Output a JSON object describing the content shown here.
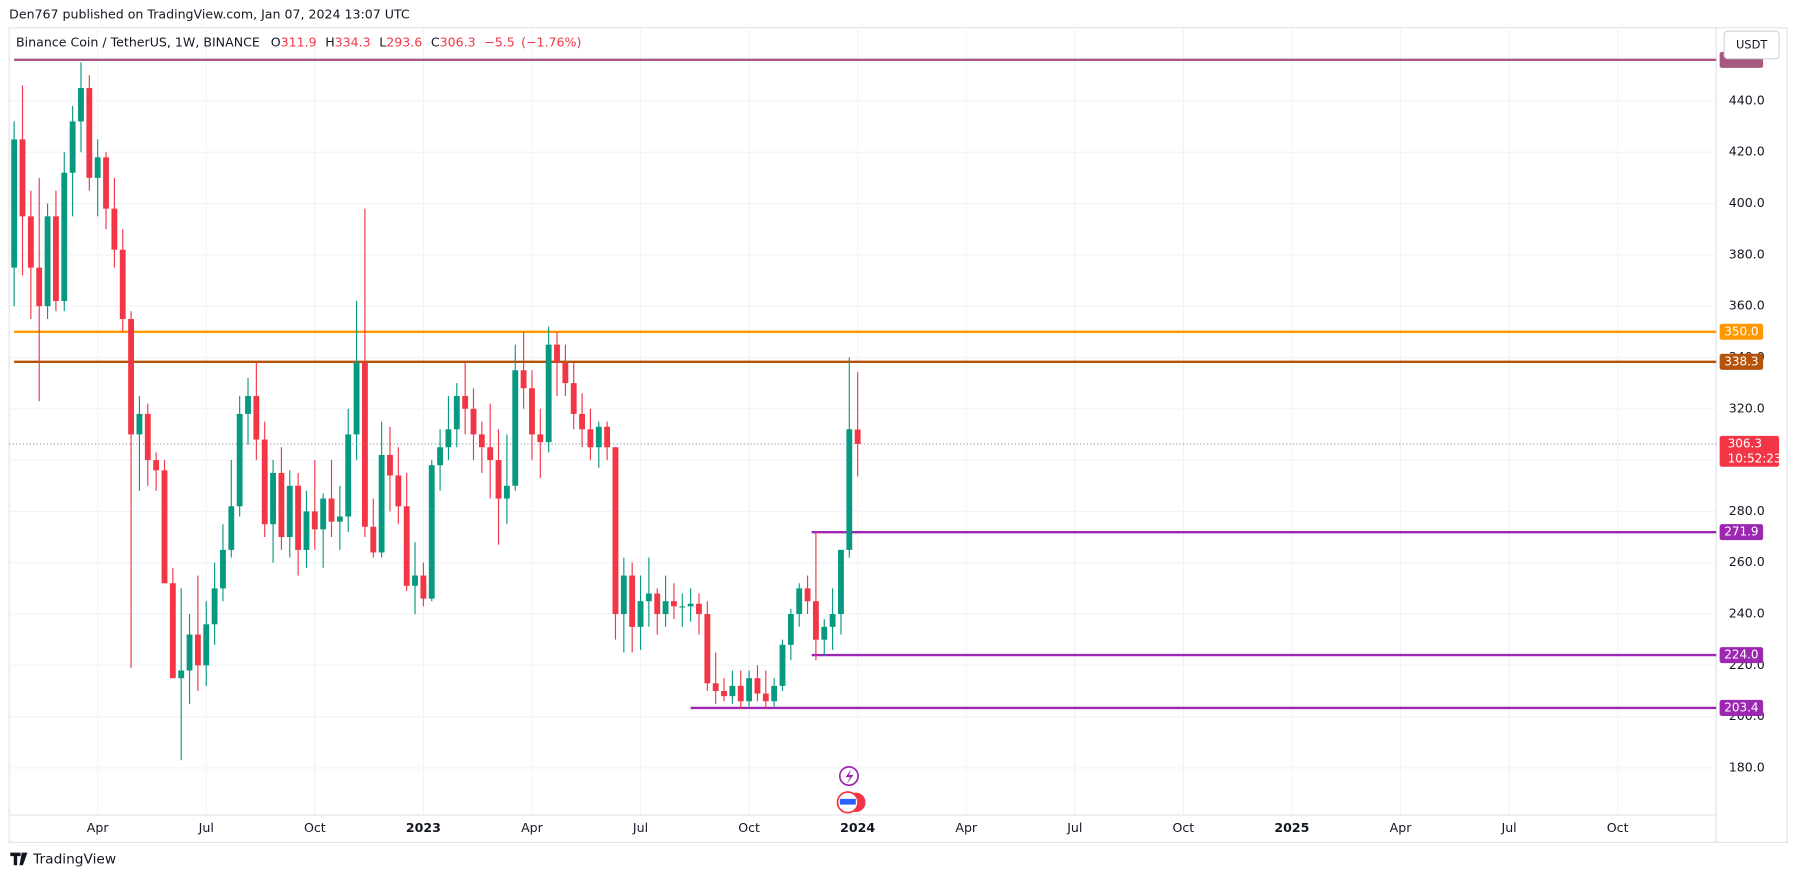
{
  "chart_data": {
    "type": "candlestick",
    "published": "Den767 published on TradingView.com, Jan 07, 2024 13:07 UTC",
    "symbol": "Binance Coin / TetherUS, 1W, BINANCE",
    "ohlc_letters": [
      "O",
      "H",
      "L",
      "C"
    ],
    "change": {
      "value": -5.5,
      "label": "−5.5"
    },
    "change_percent": {
      "value": -1.76,
      "label": "(−1.76%)"
    },
    "currency": "USDT",
    "countdown": "10:52:23",
    "brand": "TradingView",
    "up_color": "#089981",
    "down_color": "#f23645",
    "open": [
      375,
      425,
      395,
      375,
      360,
      395,
      362,
      412,
      432,
      445,
      410,
      418,
      398,
      382,
      355,
      310,
      318,
      300,
      296,
      252,
      215,
      218,
      232,
      220,
      236,
      250,
      265,
      282,
      318,
      325,
      308,
      275,
      295,
      270,
      290,
      265,
      280,
      273,
      285,
      276,
      278,
      310,
      338,
      274,
      264,
      302,
      294,
      282,
      251,
      255,
      246,
      298,
      305,
      312,
      325,
      320,
      310,
      305,
      300,
      285,
      290,
      335,
      328,
      310,
      307,
      345,
      338,
      330,
      318,
      312,
      305,
      313,
      305,
      240,
      255,
      235,
      245,
      248,
      240,
      245,
      243,
      243,
      244,
      240,
      213,
      210,
      208,
      212,
      206,
      215,
      209,
      206,
      212,
      228,
      240,
      250,
      245,
      230,
      235,
      240,
      265,
      311.9
    ],
    "high": [
      432,
      446,
      405,
      410,
      400,
      405,
      420,
      438,
      455,
      450,
      425,
      420,
      410,
      390,
      358,
      325,
      322,
      303,
      300,
      258,
      250,
      240,
      255,
      245,
      260,
      275,
      300,
      325,
      332,
      338,
      315,
      300,
      305,
      296,
      295,
      288,
      300,
      287,
      300,
      290,
      320,
      362,
      398,
      285,
      315,
      313,
      305,
      295,
      268,
      260,
      300,
      312,
      325,
      330,
      338,
      328,
      315,
      322,
      312,
      310,
      345,
      350,
      335,
      320,
      352,
      350,
      345,
      338,
      326,
      320,
      315,
      315,
      305,
      262,
      260,
      255,
      262,
      250,
      255,
      252,
      248,
      250,
      248,
      245,
      225,
      215,
      218,
      218,
      218,
      220,
      218,
      215,
      230,
      242,
      252,
      255,
      272,
      238,
      250,
      265,
      340,
      334.3
    ],
    "low": [
      360,
      372,
      355,
      323,
      355,
      358,
      358,
      395,
      420,
      405,
      395,
      390,
      375,
      350,
      219,
      288,
      290,
      288,
      252,
      215,
      183,
      205,
      210,
      212,
      228,
      245,
      262,
      278,
      306,
      300,
      270,
      260,
      265,
      262,
      255,
      258,
      265,
      258,
      270,
      265,
      272,
      300,
      270,
      262,
      262,
      280,
      275,
      249,
      240,
      243,
      245,
      288,
      300,
      305,
      310,
      300,
      295,
      285,
      267,
      275,
      288,
      320,
      300,
      293,
      303,
      325,
      325,
      312,
      305,
      300,
      297,
      300,
      230,
      225,
      225,
      226,
      235,
      232,
      235,
      238,
      235,
      237,
      232,
      210,
      205,
      206,
      205,
      203,
      204,
      206,
      203,
      204,
      210,
      222,
      235,
      240,
      222,
      224,
      226,
      232,
      262,
      293.6
    ],
    "close": [
      425,
      395,
      375,
      360,
      395,
      362,
      412,
      432,
      445,
      410,
      418,
      398,
      382,
      355,
      310,
      318,
      300,
      296,
      252,
      215,
      218,
      232,
      220,
      236,
      250,
      265,
      282,
      318,
      325,
      308,
      275,
      295,
      270,
      290,
      265,
      280,
      273,
      285,
      276,
      278,
      310,
      338,
      274,
      264,
      302,
      294,
      282,
      251,
      255,
      246,
      298,
      305,
      312,
      325,
      320,
      310,
      305,
      300,
      285,
      290,
      335,
      328,
      310,
      307,
      345,
      338,
      330,
      318,
      312,
      305,
      313,
      305,
      240,
      255,
      235,
      245,
      248,
      240,
      245,
      243,
      243,
      244,
      240,
      213,
      210,
      208,
      212,
      206,
      215,
      209,
      206,
      212,
      228,
      240,
      250,
      245,
      230,
      235,
      240,
      265,
      312,
      306.3
    ],
    "xlim": [
      -0.6,
      203.8
    ],
    "ylim": [
      161.7,
      468.5
    ],
    "xticks": [
      {
        "value": 10,
        "label": "Apr"
      },
      {
        "value": 23,
        "label": "Jul"
      },
      {
        "value": 36,
        "label": "Oct"
      },
      {
        "value": 49,
        "label": "2023"
      },
      {
        "value": 62,
        "label": "Apr"
      },
      {
        "value": 75,
        "label": "Jul"
      },
      {
        "value": 88,
        "label": "Oct"
      },
      {
        "value": 101,
        "label": "2024"
      },
      {
        "value": 114,
        "label": "Apr"
      },
      {
        "value": 127,
        "label": "Jul"
      },
      {
        "value": 140,
        "label": "Oct"
      },
      {
        "value": 153,
        "label": "2025"
      },
      {
        "value": 166,
        "label": "Apr"
      },
      {
        "value": 179,
        "label": "Jul"
      },
      {
        "value": 192,
        "label": "Oct"
      }
    ],
    "yticks": [
      {
        "value": 180,
        "label": "180.0"
      },
      {
        "value": 200,
        "label": "200.0"
      },
      {
        "value": 220,
        "label": "220.0"
      },
      {
        "value": 240,
        "label": "240.0"
      },
      {
        "value": 260,
        "label": "260.0"
      },
      {
        "value": 280,
        "label": "280.0"
      },
      {
        "value": 300,
        "label": "300.0"
      },
      {
        "value": 320,
        "label": "320.0"
      },
      {
        "value": 340,
        "label": "340.0"
      },
      {
        "value": 360,
        "label": "360.0"
      },
      {
        "value": 380,
        "label": "380.0"
      },
      {
        "value": 400,
        "label": "400.0"
      },
      {
        "value": 420,
        "label": "420.0"
      },
      {
        "value": 440,
        "label": "440.0"
      }
    ],
    "levels": [
      {
        "value": 456,
        "color": "#a7587f",
        "start": 0
      },
      {
        "value": 350,
        "label": "350.0",
        "color": "#ff9800",
        "start": 0
      },
      {
        "value": 338.3,
        "label": "338.3",
        "color": "#b45309",
        "start": 0
      },
      {
        "value": 271.9,
        "label": "271.9",
        "color": "#9c27b0",
        "start": 95.5
      },
      {
        "value": 224,
        "label": "224.0",
        "color": "#9c27b0",
        "start": 95.5
      },
      {
        "value": 203.4,
        "label": "203.4",
        "color": "#9c27b0",
        "start": 81
      }
    ]
  }
}
